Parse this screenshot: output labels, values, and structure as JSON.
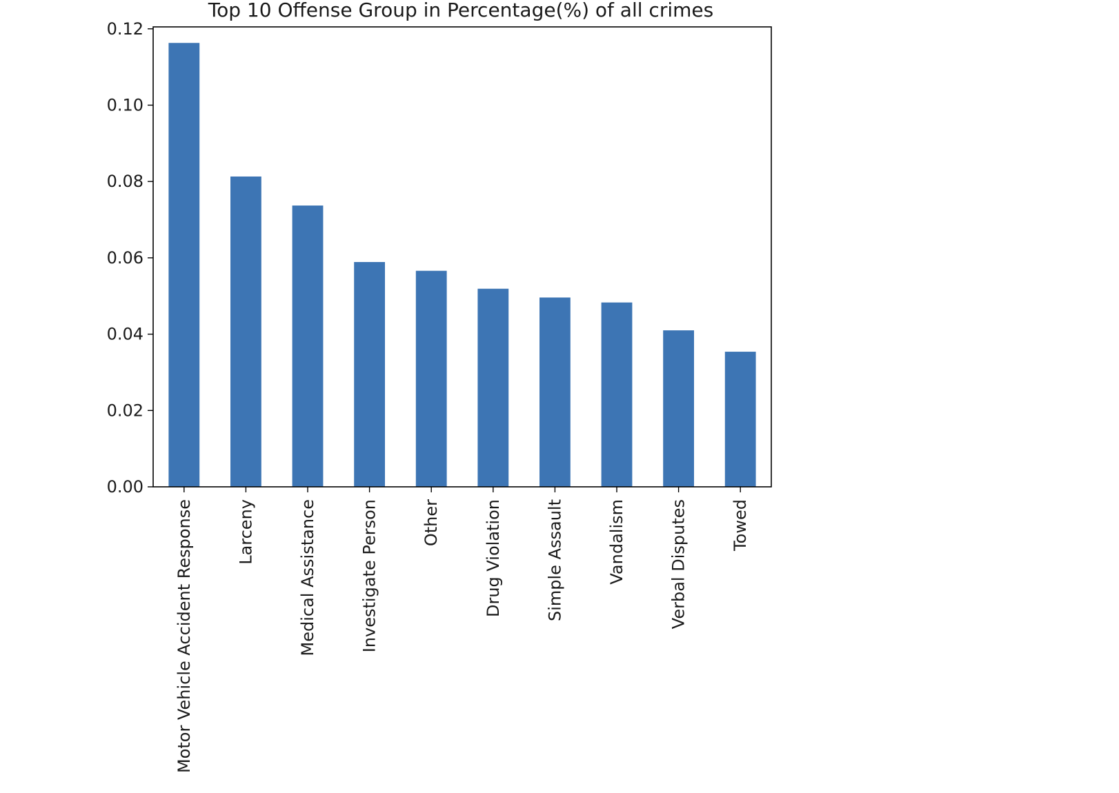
{
  "chart_data": {
    "type": "bar",
    "title": "Top 10 Offense Group in Percentage(%) of all crimes",
    "xlabel": "",
    "ylabel": "",
    "categories": [
      "Motor Vehicle Accident Response",
      "Larceny",
      "Medical Assistance",
      "Investigate Person",
      "Other",
      "Drug Violation",
      "Simple Assault",
      "Vandalism",
      "Verbal Disputes",
      "Towed"
    ],
    "values": [
      0.1163,
      0.0813,
      0.0737,
      0.0589,
      0.0566,
      0.0519,
      0.0496,
      0.0483,
      0.041,
      0.0354
    ],
    "ylim": [
      0,
      0.1205
    ],
    "yticks": [
      "0.00",
      "0.02",
      "0.04",
      "0.06",
      "0.08",
      "0.10",
      "0.12"
    ],
    "bar_color": "#3d75b4",
    "grid": false,
    "legend": "none"
  }
}
